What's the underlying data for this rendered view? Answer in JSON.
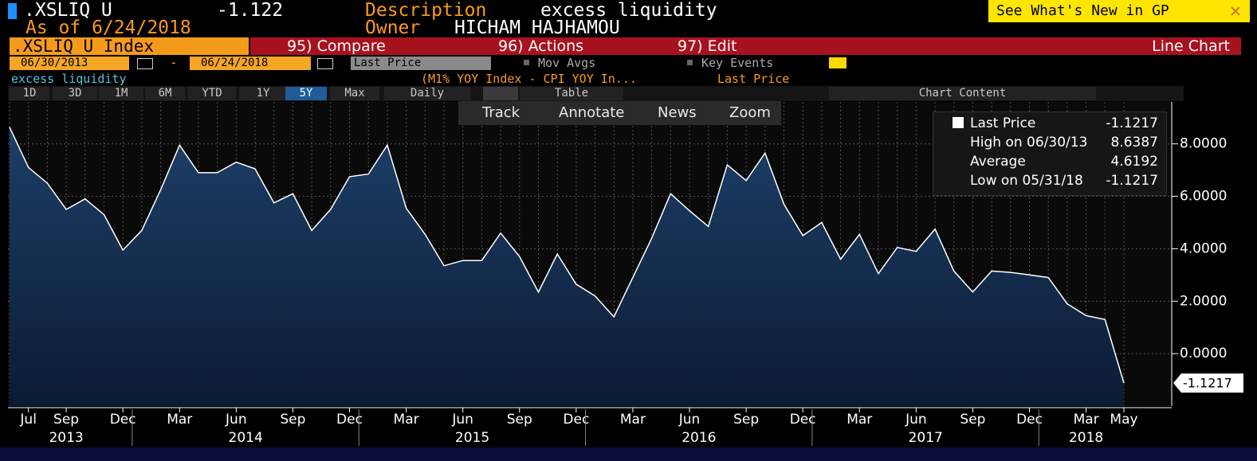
{
  "header": {
    "ticker": ".XSLIQ U",
    "last": "-1.122",
    "description_label": "Description",
    "description": "excess liquidity",
    "as_of": "As of 6/24/2018",
    "owner_label": "Owner",
    "owner": "HICHAM HAJHAMOU",
    "whats_new": "See What's New in GP"
  },
  "menu": {
    "security": ".XSLIQ U Index",
    "compare": "95) Compare",
    "actions": "96) Actions",
    "edit": "97) Edit",
    "view": "Line Chart"
  },
  "controls": {
    "start": "06/30/2013",
    "dash": "-",
    "end": "06/24/2018",
    "field": "Last Price",
    "mov_avgs": "Mov Avgs",
    "key_events": "Key Events"
  },
  "series_bar": {
    "name": "excess liquidity",
    "formula": "(M1% YOY Index - CPI YOY In...",
    "field": "Last Price"
  },
  "ranges": [
    "1D",
    "3D",
    "1M",
    "6M",
    "YTD",
    "1Y",
    "5Y",
    "Max"
  ],
  "frequency": "Daily",
  "table": "Table",
  "chart_content": "Chart Content",
  "tools": [
    "Track",
    "Annotate",
    "News",
    "Zoom"
  ],
  "legend": [
    {
      "label": "Last Price",
      "value": "-1.1217"
    },
    {
      "label": "High on 06/30/13",
      "value": "8.6387"
    },
    {
      "label": "Average",
      "value": "4.6192"
    },
    {
      "label": "Low on 05/31/18",
      "value": "-1.1217"
    }
  ],
  "chart_data": {
    "type": "area",
    "color": "#ffffff",
    "fill": "#163456",
    "x": [
      "2013-06",
      "2013-07",
      "2013-08",
      "2013-09",
      "2013-10",
      "2013-11",
      "2013-12",
      "2014-01",
      "2014-02",
      "2014-03",
      "2014-04",
      "2014-05",
      "2014-06",
      "2014-07",
      "2014-08",
      "2014-09",
      "2014-10",
      "2014-11",
      "2014-12",
      "2015-01",
      "2015-02",
      "2015-03",
      "2015-04",
      "2015-05",
      "2015-06",
      "2015-07",
      "2015-08",
      "2015-09",
      "2015-10",
      "2015-11",
      "2015-12",
      "2016-01",
      "2016-02",
      "2016-03",
      "2016-04",
      "2016-05",
      "2016-06",
      "2016-07",
      "2016-08",
      "2016-09",
      "2016-10",
      "2016-11",
      "2016-12",
      "2017-01",
      "2017-02",
      "2017-03",
      "2017-04",
      "2017-05",
      "2017-06",
      "2017-07",
      "2017-08",
      "2017-09",
      "2017-10",
      "2017-11",
      "2017-12",
      "2018-01",
      "2018-02",
      "2018-03",
      "2018-04",
      "2018-05"
    ],
    "values": [
      8.6387,
      7.1,
      6.5,
      5.5,
      5.9,
      5.3,
      3.95,
      4.7,
      6.25,
      7.95,
      6.9,
      6.9,
      7.3,
      7.05,
      5.75,
      6.1,
      4.7,
      5.5,
      6.75,
      6.85,
      7.95,
      5.55,
      4.55,
      3.35,
      3.55,
      3.55,
      4.6,
      3.7,
      2.35,
      3.8,
      2.65,
      2.2,
      1.4,
      2.9,
      4.4,
      6.1,
      5.45,
      4.85,
      7.2,
      6.6,
      7.65,
      5.7,
      4.5,
      5.0,
      3.6,
      4.55,
      3.05,
      4.05,
      3.9,
      4.75,
      3.15,
      2.35,
      3.15,
      3.1,
      3.0,
      2.9,
      1.9,
      1.45,
      1.3,
      -1.1217
    ],
    "last_label": "-1.1217",
    "ylim": [
      -2,
      9.6
    ],
    "yticks": [
      {
        "value": 0,
        "label": "0.0000"
      },
      {
        "value": 2,
        "label": "2.0000"
      },
      {
        "value": 4,
        "label": "4.0000"
      },
      {
        "value": 6,
        "label": "6.0000"
      },
      {
        "value": 8,
        "label": "8.0000"
      }
    ],
    "xticks": [
      {
        "value": "2013-07",
        "label": "Jul"
      },
      {
        "value": "2013-09",
        "label": "Sep"
      },
      {
        "value": "2013-12",
        "label": "Dec"
      },
      {
        "value": "2014-03",
        "label": "Mar"
      },
      {
        "value": "2014-06",
        "label": "Jun"
      },
      {
        "value": "2014-09",
        "label": "Sep"
      },
      {
        "value": "2014-12",
        "label": "Dec"
      },
      {
        "value": "2015-03",
        "label": "Mar"
      },
      {
        "value": "2015-06",
        "label": "Jun"
      },
      {
        "value": "2015-09",
        "label": "Sep"
      },
      {
        "value": "2015-12",
        "label": "Dec"
      },
      {
        "value": "2016-03",
        "label": "Mar"
      },
      {
        "value": "2016-06",
        "label": "Jun"
      },
      {
        "value": "2016-09",
        "label": "Sep"
      },
      {
        "value": "2016-12",
        "label": "Dec"
      },
      {
        "value": "2017-03",
        "label": "Mar"
      },
      {
        "value": "2017-06",
        "label": "Jun"
      },
      {
        "value": "2017-09",
        "label": "Sep"
      },
      {
        "value": "2017-12",
        "label": "Dec"
      },
      {
        "value": "2018-03",
        "label": "Mar"
      },
      {
        "value": "2018-05",
        "label": "May"
      }
    ],
    "year_labels": [
      "2013",
      "2014",
      "2015",
      "2016",
      "2017",
      "2018"
    ],
    "grid": true
  }
}
